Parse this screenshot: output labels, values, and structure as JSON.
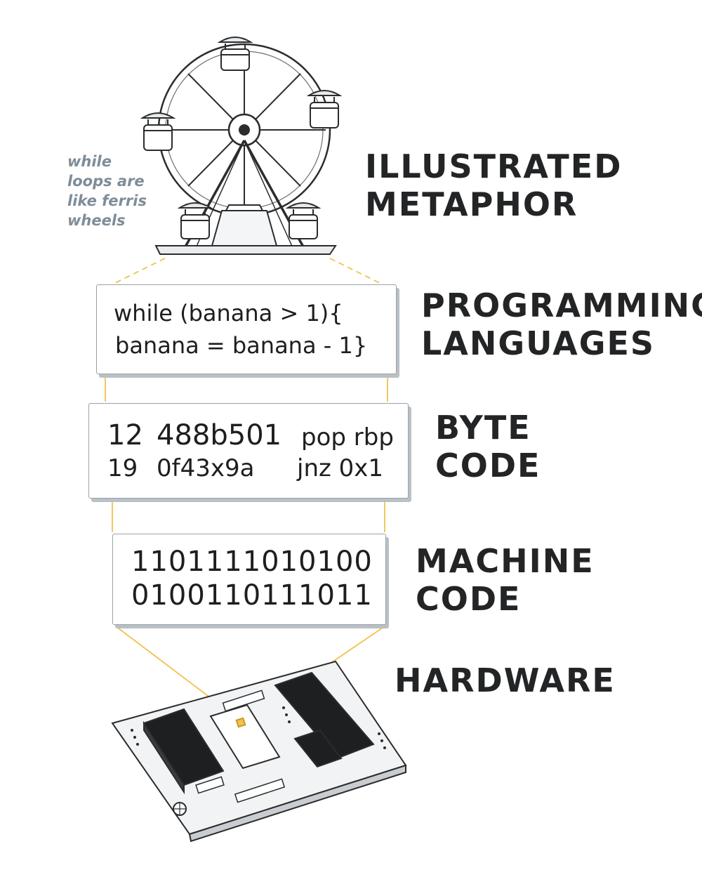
{
  "note": {
    "lines": [
      "while",
      "loops are",
      "like ferris",
      "wheels"
    ]
  },
  "layers": {
    "metaphor": {
      "title_lines": [
        "ILLUSTRATED",
        "METAPHOR"
      ]
    },
    "programming": {
      "title_lines": [
        "PROGRAMMING",
        "LANGUAGES"
      ],
      "code_lines": [
        "while (banana > 1){",
        "banana = banana - 1}"
      ]
    },
    "bytecode": {
      "title_lines": [
        "BYTE",
        "CODE"
      ],
      "col1": [
        "12",
        "19"
      ],
      "col2": [
        "488b501",
        "0f43x9a"
      ],
      "col3": [
        "pop rbp",
        "jnz 0x1"
      ]
    },
    "machine": {
      "title_lines": [
        "MACHINE",
        "CODE"
      ],
      "code_lines": [
        "1101111010100",
        "0100110111011"
      ]
    },
    "hardware": {
      "title_lines": [
        "HARDWARE"
      ]
    }
  },
  "colors": {
    "ink": "#222426",
    "note": "#7f8d98",
    "connector": "#f2c14e",
    "chip": "#1e1f21"
  }
}
